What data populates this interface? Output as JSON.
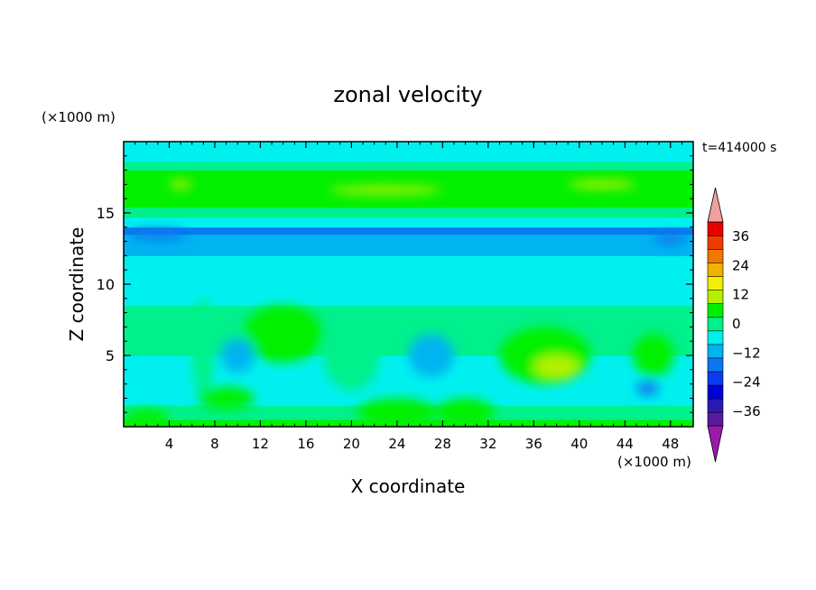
{
  "chart_data": {
    "type": "heatmap",
    "title": "zonal velocity",
    "xlabel": "X coordinate",
    "ylabel": "Z coordinate",
    "x_unit": "(×1000 m)",
    "y_unit": "(×1000 m)",
    "time_label": "t=414000 s",
    "xlim": [
      0,
      50
    ],
    "ylim": [
      0,
      20
    ],
    "x_ticks": [
      4,
      8,
      12,
      16,
      20,
      24,
      28,
      32,
      36,
      40,
      44,
      48
    ],
    "y_ticks": [
      5,
      10,
      15
    ],
    "colorbar": {
      "levels": [
        -42,
        -36,
        -30,
        -24,
        -18,
        -12,
        -6,
        0,
        6,
        12,
        18,
        24,
        30,
        36,
        42
      ],
      "tick_values": [
        -36,
        -24,
        -12,
        0,
        12,
        24,
        36
      ],
      "tick_labels": [
        "−36",
        "−24",
        "−12",
        "0",
        "12",
        "24",
        "36"
      ],
      "colors": [
        "#5a1a9e",
        "#2a1ab0",
        "#0000d8",
        "#0a3cf0",
        "#0a78f0",
        "#00b4f0",
        "#00f0f0",
        "#00f08c",
        "#00f000",
        "#b4f000",
        "#f0f000",
        "#f0b400",
        "#f07800",
        "#f03c00",
        "#e80000"
      ],
      "under_color": "#9a1aac",
      "over_color": "#f0a0a0"
    },
    "field_bands": [
      {
        "z": [
          0.0,
          0.5
        ],
        "value": 8
      },
      {
        "z": [
          0.5,
          1.5
        ],
        "value": 4
      },
      {
        "z": [
          1.5,
          3.5
        ],
        "value": -3
      },
      {
        "z": [
          3.5,
          5.0
        ],
        "value": -2
      },
      {
        "z": [
          5.0,
          7.0
        ],
        "value": 1
      },
      {
        "z": [
          7.0,
          8.5
        ],
        "value": 2
      },
      {
        "z": [
          8.5,
          10.0
        ],
        "value": -3
      },
      {
        "z": [
          10.0,
          12.0
        ],
        "value": -6
      },
      {
        "z": [
          12.0,
          13.5
        ],
        "value": -9
      },
      {
        "z": [
          13.5,
          14.0
        ],
        "value": -14
      },
      {
        "z": [
          14.0,
          14.7
        ],
        "value": -4
      },
      {
        "z": [
          14.7,
          15.4
        ],
        "value": 4
      },
      {
        "z": [
          15.4,
          16.0
        ],
        "value": 8
      },
      {
        "z": [
          16.0,
          17.3
        ],
        "value": 10
      },
      {
        "z": [
          17.3,
          18.0
        ],
        "value": 7
      },
      {
        "z": [
          18.0,
          18.6
        ],
        "value": 3
      },
      {
        "z": [
          18.6,
          19.5
        ],
        "value": -2
      },
      {
        "z": [
          19.5,
          20.0
        ],
        "value": -4
      }
    ],
    "field_features": [
      {
        "x": 14.0,
        "z": 6.5,
        "rx": 3.5,
        "rz": 2.0,
        "value": 6
      },
      {
        "x": 20.0,
        "z": 5.0,
        "rx": 2.5,
        "rz": 2.5,
        "value": 4
      },
      {
        "x": 37.0,
        "z": 5.0,
        "rx": 4.0,
        "rz": 2.0,
        "value": 8
      },
      {
        "x": 38.0,
        "z": 4.2,
        "rx": 2.0,
        "rz": 0.8,
        "value": 13
      },
      {
        "x": 46.5,
        "z": 5.0,
        "rx": 1.8,
        "rz": 1.5,
        "value": 7
      },
      {
        "x": 7.0,
        "z": 5.5,
        "rx": 1.0,
        "rz": 3.5,
        "value": 5
      },
      {
        "x": 9.0,
        "z": 2.0,
        "rx": 2.5,
        "rz": 0.8,
        "value": 6
      },
      {
        "x": 24.0,
        "z": 1.0,
        "rx": 3.5,
        "rz": 1.0,
        "value": 8
      },
      {
        "x": 30.0,
        "z": 1.0,
        "rx": 2.5,
        "rz": 1.0,
        "value": 6
      },
      {
        "x": 2.0,
        "z": 0.6,
        "rx": 2.0,
        "rz": 0.6,
        "value": 10
      },
      {
        "x": 10.0,
        "z": 5.0,
        "rx": 1.5,
        "rz": 1.2,
        "value": -12
      },
      {
        "x": 27.0,
        "z": 5.0,
        "rx": 2.0,
        "rz": 1.5,
        "value": -8
      },
      {
        "x": 3.0,
        "z": 13.5,
        "rx": 2.5,
        "rz": 0.4,
        "value": -15
      },
      {
        "x": 48.0,
        "z": 13.2,
        "rx": 1.5,
        "rz": 0.4,
        "value": -15
      },
      {
        "x": 23.0,
        "z": 16.6,
        "rx": 5.0,
        "rz": 0.3,
        "value": 13
      },
      {
        "x": 5.0,
        "z": 17.0,
        "rx": 1.0,
        "rz": 0.3,
        "value": 13
      },
      {
        "x": 42.0,
        "z": 17.0,
        "rx": 3.0,
        "rz": 0.3,
        "value": 13
      },
      {
        "x": 46.0,
        "z": 2.7,
        "rx": 1.0,
        "rz": 0.5,
        "value": -15
      }
    ]
  }
}
